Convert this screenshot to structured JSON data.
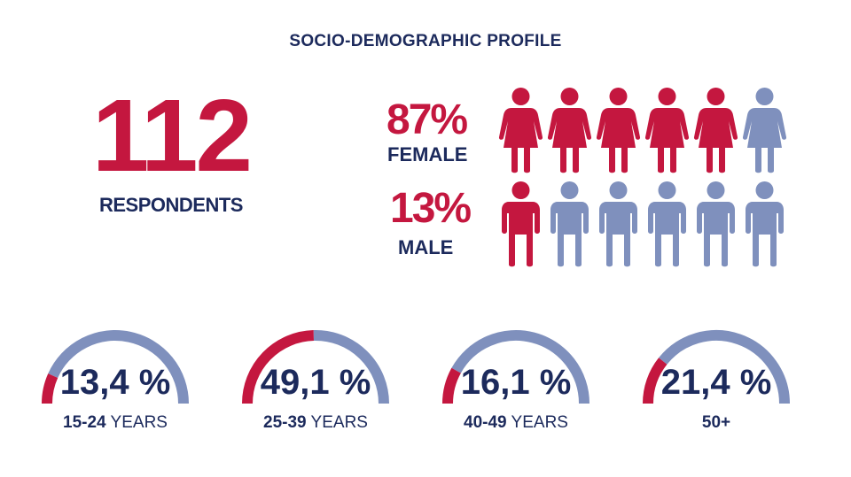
{
  "title": "SOCIO-DEMOGRAPHIC PROFILE",
  "respondents": {
    "count": "112",
    "label": "RESPONDENTS"
  },
  "female": {
    "percent": "87%",
    "label": "FEMALE",
    "icons_total": 6,
    "icons_highlighted": 5
  },
  "male": {
    "percent": "13%",
    "label": "MALE",
    "icons_total": 6,
    "icons_highlighted": 1
  },
  "age_groups": [
    {
      "value": "13,4 %",
      "fraction": 0.134,
      "range_bold": "15-24",
      "range_text": " YEARS"
    },
    {
      "value": "49,1 %",
      "fraction": 0.491,
      "range_bold": "25-39",
      "range_text": " YEARS"
    },
    {
      "value": "16,1 %",
      "fraction": 0.161,
      "range_bold": "40-49",
      "range_text": " YEARS"
    },
    {
      "value": "21,4 %",
      "fraction": 0.214,
      "range_bold": "50+",
      "range_text": ""
    }
  ],
  "colors": {
    "highlight": "#c4173f",
    "muted": "#7f90bd",
    "text": "#1c2a5c"
  },
  "icons": {
    "female": "woman-icon",
    "male": "man-icon"
  }
}
